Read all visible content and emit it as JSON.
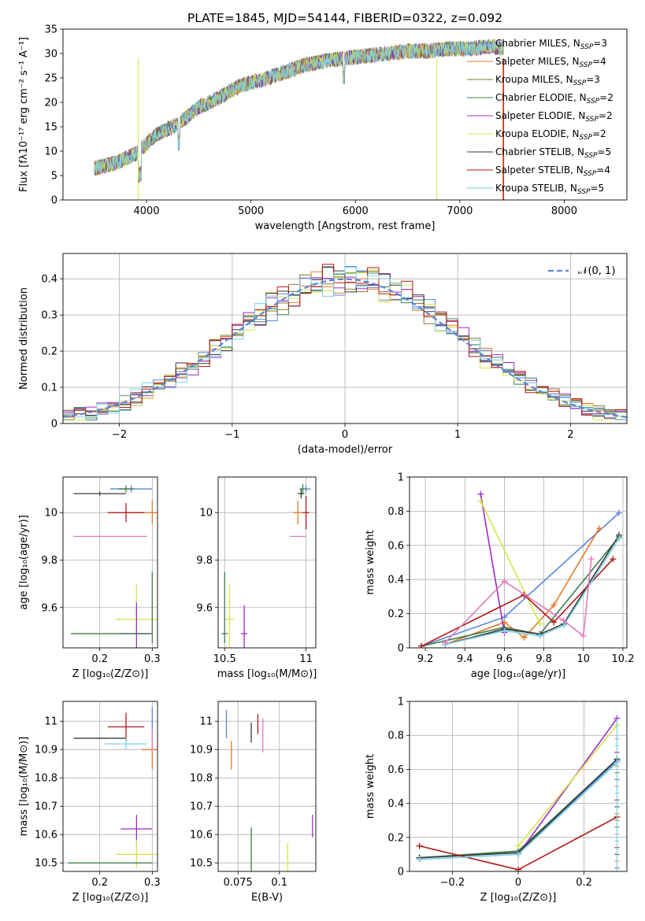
{
  "title": "PLATE=1845, MJD=54144, FIBERID=0322, z=0.092",
  "colors": {
    "Chabrier MILES": "#5b86d6",
    "Salpeter MILES": "#e57a2a",
    "Kroupa MILES": "#8a7a2c",
    "Chabrier ELODIE": "#3f7f4e",
    "Salpeter ELODIE": "#9b2fc8",
    "Kroupa ELODIE": "#d8e34a",
    "Chabrier STELIB": "#3a3a3a",
    "Salpeter STELIB": "#b01818",
    "Kroupa STELIB": "#7ad2e8",
    "extra pink": "#e17bbd"
  },
  "chart_data": [
    {
      "type": "line",
      "id": "spectrum",
      "title": "PLATE=1845, MJD=54144, FIBERID=0322, z=0.092",
      "xlabel": "wavelength [Angstrom, rest frame]",
      "ylabel": "Flux [fλ10⁻¹⁷ erg cm⁻² s⁻¹ A⁻¹]",
      "xlim": [
        3200,
        8600
      ],
      "ylim": [
        0,
        35
      ],
      "xticks": [
        4000,
        5000,
        6000,
        7000,
        8000
      ],
      "yticks": [
        0,
        5,
        10,
        15,
        20,
        25,
        30,
        35
      ],
      "x": [
        3500,
        3700,
        3900,
        4000,
        4100,
        4300,
        4500,
        4700,
        4900,
        5100,
        5300,
        5500,
        5700,
        5900,
        6100,
        6300,
        6500,
        6700,
        6900,
        7100,
        7300,
        7400
      ],
      "y": [
        6.5,
        7.5,
        9.5,
        11.5,
        13.5,
        15.5,
        19,
        21,
        23.5,
        24.5,
        26,
        27.5,
        28.5,
        29,
        29.5,
        30,
        30.5,
        30.5,
        31,
        31,
        31.5,
        31
      ],
      "legend_position": "top-right",
      "legend": [
        {
          "label": "Chabrier MILES, N",
          "sub": "SSP",
          "suffix": "=3",
          "color": "#5b86d6"
        },
        {
          "label": "Salpeter MILES, N",
          "sub": "SSP",
          "suffix": "=4",
          "color": "#e57a2a"
        },
        {
          "label": "Kroupa MILES, N",
          "sub": "SSP",
          "suffix": "=3",
          "color": "#8a7a2c"
        },
        {
          "label": "Chabrier ELODIE, N",
          "sub": "SSP",
          "suffix": "=2",
          "color": "#3f7f4e"
        },
        {
          "label": "Salpeter ELODIE, N",
          "sub": "SSP",
          "suffix": "=2",
          "color": "#9b2fc8"
        },
        {
          "label": "Kroupa ELODIE, N",
          "sub": "SSP",
          "suffix": "=2",
          "color": "#d8e34a"
        },
        {
          "label": "Chabrier STELIB, N",
          "sub": "SSP",
          "suffix": "=5",
          "color": "#3a3a3a"
        },
        {
          "label": "Salpeter STELIB, N",
          "sub": "SSP",
          "suffix": "=4",
          "color": "#b01818"
        },
        {
          "label": "Kroupa STELIB, N",
          "sub": "SSP",
          "suffix": "=5",
          "color": "#7ad2e8"
        }
      ]
    },
    {
      "type": "histogram",
      "id": "residuals",
      "xlabel": "(data-model)/error",
      "ylabel": "Normed distribution",
      "xlim": [
        -2.5,
        2.5
      ],
      "ylim": [
        0,
        0.47
      ],
      "xticks": [
        -2,
        -1,
        0,
        1,
        2
      ],
      "yticks": [
        0.0,
        0.1,
        0.2,
        0.3,
        0.4
      ],
      "grid": true,
      "legend_position": "top-right",
      "reference": {
        "label": "𝒩(0, 1)",
        "mean": 0,
        "sigma": 1,
        "color": "#5b86d6"
      }
    },
    {
      "type": "scatter",
      "id": "age-vs-Z",
      "xlabel": "Z [log₁₀(Z/Z⊙)]",
      "ylabel": "age  [log₁₀(age/yr)]",
      "xlim": [
        0.13,
        0.31
      ],
      "ylim": [
        9.43,
        10.15
      ],
      "xticks": [
        0.2,
        0.3
      ],
      "yticks": [
        9.6,
        9.8,
        10.0
      ],
      "grid": true,
      "points": [
        {
          "x": 0.26,
          "y": 10.1,
          "xerr": 0.04,
          "yerr": 0.015,
          "color": "#5b86d6"
        },
        {
          "x": 0.3,
          "y": 10.0,
          "xerr": 0.02,
          "yerr": 0.05,
          "color": "#e57a2a"
        },
        {
          "x": 0.2,
          "y": 10.08,
          "xerr": 0.05,
          "yerr": 0.008,
          "color": "#3a3a3a"
        },
        {
          "x": 0.25,
          "y": 10.0,
          "xerr": 0.035,
          "yerr": 0.04,
          "color": "#b01818"
        },
        {
          "x": 0.25,
          "y": 10.1,
          "xerr": 0.015,
          "yerr": 0.015,
          "color": "#3f7f4e"
        },
        {
          "x": 0.22,
          "y": 9.9,
          "xerr": 0.07,
          "yerr": 0.0,
          "color": "#e17bbd"
        },
        {
          "x": 0.27,
          "y": 9.55,
          "xerr": 0.04,
          "yerr": 0.15,
          "color": "#d8e34a"
        },
        {
          "x": 0.27,
          "y": 9.49,
          "xerr": 0.03,
          "yerr": 0.13,
          "color": "#9b2fc8"
        },
        {
          "x": 0.22,
          "y": 9.49,
          "xerr": 0.075,
          "yerr": 0.0,
          "color": "#3f7f4e"
        },
        {
          "x": 0.3,
          "y": 9.6,
          "xerr": 0.0,
          "yerr": 0.15,
          "color": "#3f7f4e"
        }
      ]
    },
    {
      "type": "scatter",
      "id": "age-vs-mass",
      "xlabel": "mass [log₁₀(M/M⊙)]",
      "ylabel": "",
      "xlim": [
        10.46,
        11.06
      ],
      "ylim": [
        9.43,
        10.15
      ],
      "xticks": [
        10.5,
        11.0
      ],
      "yticks": [
        9.6,
        9.8,
        10.0
      ],
      "grid": true,
      "points": [
        {
          "x": 11.0,
          "y": 10.1,
          "xerr": 0.03,
          "yerr": 0.015,
          "color": "#5b86d6"
        },
        {
          "x": 10.95,
          "y": 10.0,
          "xerr": 0.03,
          "yerr": 0.05,
          "color": "#e57a2a"
        },
        {
          "x": 10.97,
          "y": 10.08,
          "xerr": 0.02,
          "yerr": 0.02,
          "color": "#3a3a3a"
        },
        {
          "x": 11.0,
          "y": 10.0,
          "xerr": 0.02,
          "yerr": 0.07,
          "color": "#b01818"
        },
        {
          "x": 10.98,
          "y": 10.1,
          "xerr": 0.02,
          "yerr": 0.02,
          "color": "#3f7f4e"
        },
        {
          "x": 10.95,
          "y": 9.9,
          "xerr": 0.05,
          "yerr": 0.0,
          "color": "#e17bbd"
        },
        {
          "x": 10.53,
          "y": 9.55,
          "xerr": 0.03,
          "yerr": 0.15,
          "color": "#d8e34a"
        },
        {
          "x": 10.62,
          "y": 9.49,
          "xerr": 0.02,
          "yerr": 0.12,
          "color": "#9b2fc8"
        },
        {
          "x": 10.5,
          "y": 9.6,
          "xerr": 0.0,
          "yerr": 0.15,
          "color": "#3f7f4e"
        },
        {
          "x": 10.5,
          "y": 9.49,
          "xerr": 0.02,
          "yerr": 0.0,
          "color": "#3f7f4e"
        }
      ]
    },
    {
      "type": "line",
      "id": "massweight-vs-age",
      "xlabel": "age  [log₁₀(age/yr)]",
      "ylabel": "mass weight",
      "xlim": [
        9.12,
        10.22
      ],
      "ylim": [
        0,
        1
      ],
      "xticks": [
        9.2,
        9.4,
        9.6,
        9.8,
        10.0,
        10.2
      ],
      "yticks": [
        0.0,
        0.2,
        0.4,
        0.6,
        0.8,
        1.0
      ],
      "grid": true,
      "series": [
        {
          "color": "#5b86d6",
          "x": [
            9.18,
            9.6,
            10.18
          ],
          "y": [
            0.01,
            0.18,
            0.79
          ]
        },
        {
          "color": "#e57a2a",
          "x": [
            9.3,
            9.6,
            9.7,
            9.85,
            10.08
          ],
          "y": [
            0.02,
            0.15,
            0.06,
            0.25,
            0.7
          ]
        },
        {
          "color": "#3f7f4e",
          "x": [
            9.18,
            9.6,
            9.78,
            10.18
          ],
          "y": [
            0.01,
            0.12,
            0.08,
            0.65
          ]
        },
        {
          "color": "#9b2fc8",
          "x": [
            9.48,
            9.6
          ],
          "y": [
            0.9,
            0.09
          ]
        },
        {
          "color": "#d8e34a",
          "x": [
            9.48,
            9.78
          ],
          "y": [
            0.86,
            0.14
          ]
        },
        {
          "color": "#3a3a3a",
          "x": [
            9.3,
            9.6,
            9.78,
            9.9,
            10.18
          ],
          "y": [
            0.02,
            0.11,
            0.08,
            0.14,
            0.66
          ]
        },
        {
          "color": "#b01818",
          "x": [
            9.18,
            9.7,
            9.85,
            10.15
          ],
          "y": [
            0.01,
            0.31,
            0.15,
            0.52
          ]
        },
        {
          "color": "#7ad2e8",
          "x": [
            9.3,
            9.6,
            9.78,
            9.9,
            10.18
          ],
          "y": [
            0.02,
            0.1,
            0.07,
            0.13,
            0.64
          ]
        },
        {
          "color": "#e17bbd",
          "x": [
            9.3,
            9.6,
            9.9,
            10.0,
            10.04
          ],
          "y": [
            0.03,
            0.39,
            0.16,
            0.07,
            0.52
          ]
        }
      ]
    },
    {
      "type": "scatter",
      "id": "mass-vs-Z",
      "xlabel": "Z [log₁₀(Z/Z⊙)]",
      "ylabel": "mass [log₁₀(M/M⊙)]",
      "xlim": [
        0.13,
        0.31
      ],
      "ylim": [
        10.47,
        11.07
      ],
      "xticks": [
        0.2,
        0.3
      ],
      "yticks": [
        10.5,
        10.6,
        10.7,
        10.8,
        10.9,
        11.0
      ],
      "grid": true,
      "points": [
        {
          "x": 0.3,
          "y": 11.0,
          "xerr": 0.0,
          "yerr": 0.05,
          "color": "#5b86d6"
        },
        {
          "x": 0.3,
          "y": 10.9,
          "xerr": 0.02,
          "yerr": 0.07,
          "color": "#e57a2a"
        },
        {
          "x": 0.2,
          "y": 10.94,
          "xerr": 0.05,
          "yerr": 0.0,
          "color": "#3a3a3a"
        },
        {
          "x": 0.25,
          "y": 10.98,
          "xerr": 0.035,
          "yerr": 0.05,
          "color": "#b01818"
        },
        {
          "x": 0.25,
          "y": 10.92,
          "xerr": 0.04,
          "yerr": 0.02,
          "color": "#7ad2e8"
        },
        {
          "x": 0.3,
          "y": 10.93,
          "xerr": 0.0,
          "yerr": 0.04,
          "color": "#e17bbd"
        },
        {
          "x": 0.27,
          "y": 10.62,
          "xerr": 0.03,
          "yerr": 0.05,
          "color": "#9b2fc8"
        },
        {
          "x": 0.27,
          "y": 10.53,
          "xerr": 0.04,
          "yerr": 0.05,
          "color": "#d8e34a"
        },
        {
          "x": 0.22,
          "y": 10.5,
          "xerr": 0.08,
          "yerr": 0.0,
          "color": "#3f7f4e"
        }
      ]
    },
    {
      "type": "scatter",
      "id": "mass-vs-EBV",
      "xlabel": "E(B-V)",
      "ylabel": "",
      "xlim": [
        0.063,
        0.122
      ],
      "ylim": [
        10.47,
        11.07
      ],
      "xticks": [
        0.075,
        0.1
      ],
      "yticks": [
        10.5,
        10.6,
        10.7,
        10.8,
        10.9,
        11.0
      ],
      "grid": true,
      "points": [
        {
          "x": 0.068,
          "y": 10.99,
          "xerr": 0.0,
          "yerr": 0.05,
          "color": "#5b86d6"
        },
        {
          "x": 0.071,
          "y": 10.88,
          "xerr": 0.0,
          "yerr": 0.05,
          "color": "#e57a2a"
        },
        {
          "x": 0.083,
          "y": 10.96,
          "xerr": 0.0,
          "yerr": 0.035,
          "color": "#3a3a3a"
        },
        {
          "x": 0.087,
          "y": 10.99,
          "xerr": 0.0,
          "yerr": 0.035,
          "color": "#b01818"
        },
        {
          "x": 0.09,
          "y": 10.95,
          "xerr": 0.0,
          "yerr": 0.06,
          "color": "#e17bbd"
        },
        {
          "x": 0.083,
          "y": 10.54,
          "xerr": 0.0,
          "yerr": 0.085,
          "color": "#3f7f4e"
        },
        {
          "x": 0.105,
          "y": 10.52,
          "xerr": 0.0,
          "yerr": 0.05,
          "color": "#d8e34a"
        },
        {
          "x": 0.12,
          "y": 10.63,
          "xerr": 0.0,
          "yerr": 0.04,
          "color": "#9b2fc8"
        }
      ]
    },
    {
      "type": "line",
      "id": "massweight-vs-Z",
      "xlabel": "Z [log₁₀(Z/Z⊙)]",
      "ylabel": "mass weight",
      "xlim": [
        -0.33,
        0.33
      ],
      "ylim": [
        0,
        1
      ],
      "xticks": [
        -0.2,
        0.0,
        0.2
      ],
      "yticks": [
        0.0,
        0.2,
        0.4,
        0.6,
        0.8,
        1.0
      ],
      "grid": true,
      "series": [
        {
          "color": "#5b86d6",
          "x": [
            -0.3,
            0.0,
            0.3
          ],
          "y": [
            0.08,
            0.11,
            0.65
          ]
        },
        {
          "color": "#3f7f4e",
          "x": [
            -0.3,
            0.0,
            0.3
          ],
          "y": [
            0.08,
            0.12,
            0.66
          ]
        },
        {
          "color": "#9b2fc8",
          "x": [
            0.0,
            0.3
          ],
          "y": [
            0.1,
            0.9
          ]
        },
        {
          "color": "#d8e34a",
          "x": [
            0.0,
            0.3
          ],
          "y": [
            0.15,
            0.86
          ]
        },
        {
          "color": "#3a3a3a",
          "x": [
            -0.3,
            0.0,
            0.3
          ],
          "y": [
            0.08,
            0.11,
            0.66
          ]
        },
        {
          "color": "#b01818",
          "x": [
            -0.3,
            0.0,
            0.3
          ],
          "y": [
            0.15,
            0.01,
            0.32
          ]
        },
        {
          "color": "#7ad2e8",
          "x": [
            -0.3,
            0.0,
            0.3
          ],
          "y": [
            0.07,
            0.1,
            0.64
          ]
        }
      ]
    }
  ]
}
